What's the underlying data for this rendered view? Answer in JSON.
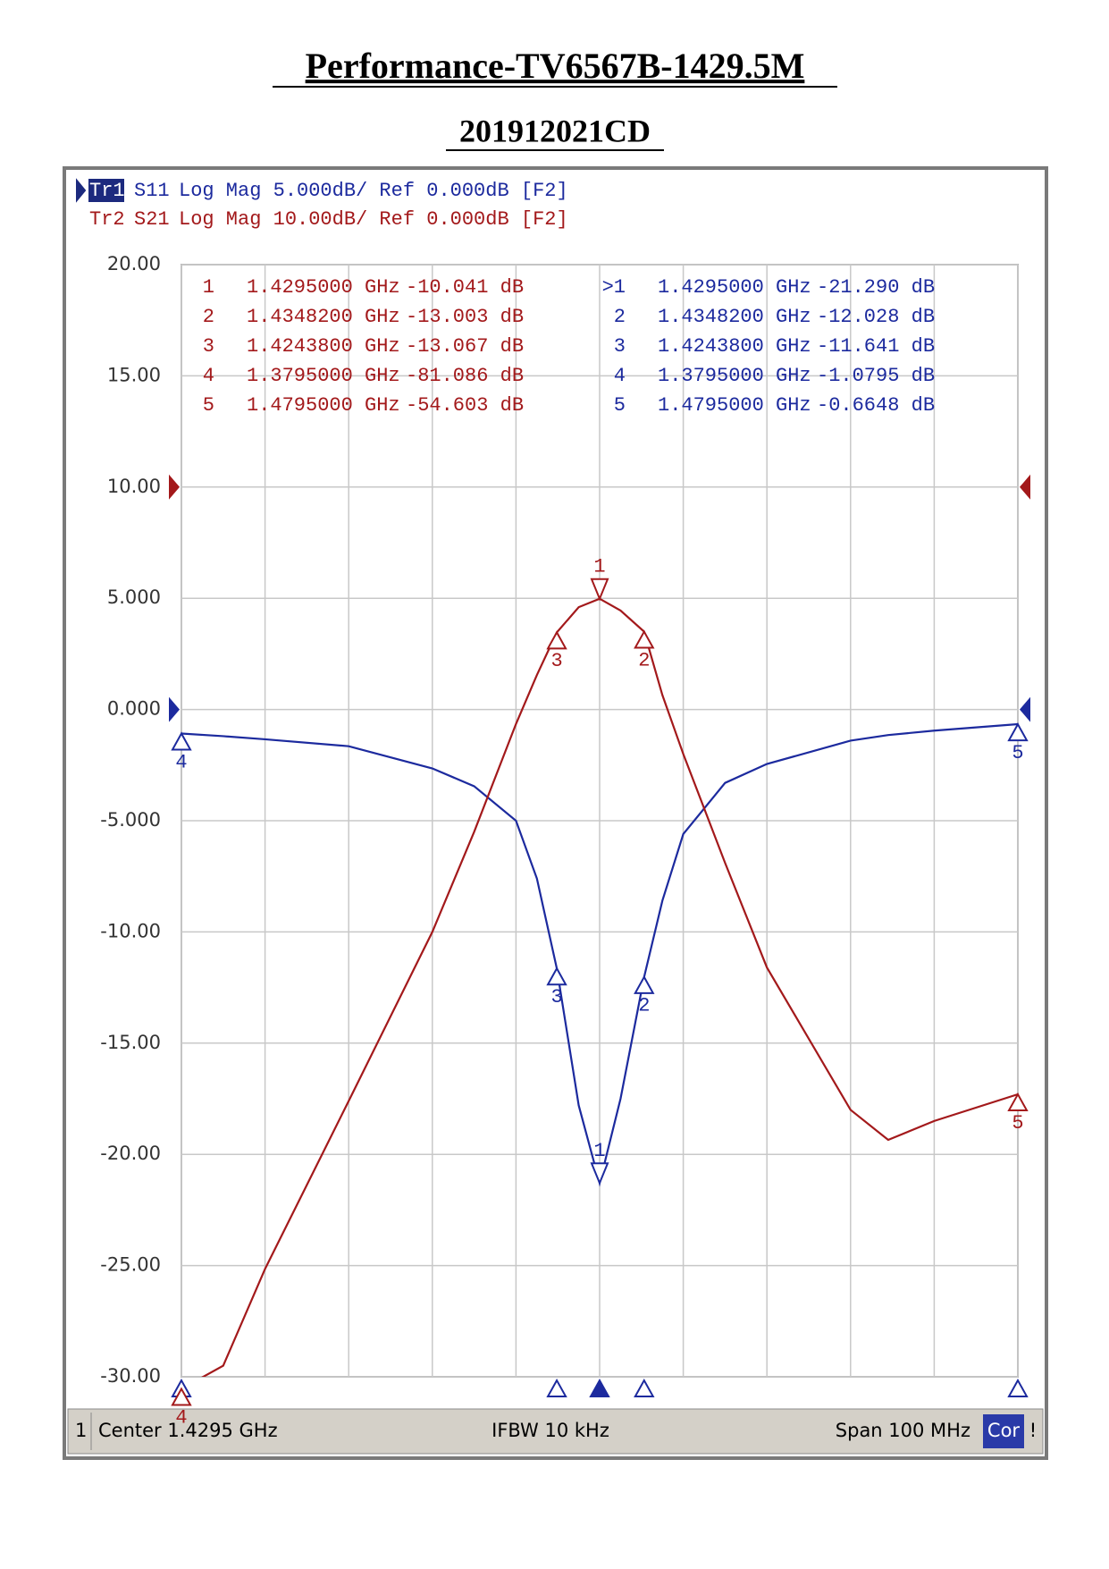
{
  "title": "Performance-TV6567B-1429.5M",
  "subtitle": "201912021CD",
  "chart_data": {
    "type": "line",
    "x": [
      1.3795,
      1.3845,
      1.3895,
      1.3995,
      1.4095,
      1.4145,
      1.4195,
      1.422,
      1.42438,
      1.427,
      1.4295,
      1.432,
      1.43482,
      1.437,
      1.4395,
      1.4445,
      1.4495,
      1.4595,
      1.464,
      1.4695,
      1.4795
    ],
    "xlim": [
      1.3795,
      1.4795
    ],
    "xticks": [
      1.3795,
      1.3895,
      1.3995,
      1.4095,
      1.4195,
      1.4295,
      1.4395,
      1.4495,
      1.4595,
      1.4695,
      1.4795
    ],
    "ylim": [
      -30,
      20
    ],
    "yticks": [
      {
        "value": 20,
        "label": "20.00"
      },
      {
        "value": 15,
        "label": "15.00"
      },
      {
        "value": 10,
        "label": "10.00"
      },
      {
        "value": 5,
        "label": "5.000"
      },
      {
        "value": 0,
        "label": "0.000"
      },
      {
        "value": -5,
        "label": "-5.000"
      },
      {
        "value": -10,
        "label": "-10.00"
      },
      {
        "value": -15,
        "label": "-15.00"
      },
      {
        "value": -20,
        "label": "-20.00"
      },
      {
        "value": -25,
        "label": "-25.00"
      },
      {
        "value": -30,
        "label": "-30.00"
      }
    ],
    "y2lim": [
      -80,
      20
    ],
    "grid": true,
    "series": [
      {
        "trace": "Tr1",
        "name": "S11",
        "format": "Log Mag 5.000dB/ Ref 0.000dB [F2]",
        "color": "#1c2a9e",
        "ref": 0,
        "values": [
          -1.08,
          -1.2,
          -1.34,
          -1.65,
          -2.65,
          -3.45,
          -5.0,
          -7.6,
          -11.64,
          -17.8,
          -21.29,
          -17.5,
          -12.03,
          -8.6,
          -5.6,
          -3.3,
          -2.45,
          -1.4,
          -1.15,
          -0.95,
          -0.66
        ],
        "markers": [
          {
            "name": "1",
            "readout_name": ">1",
            "x": 1.4295,
            "x_label": "1.4295000 GHz",
            "value": -21.29,
            "value_label": "-21.290 dB",
            "active": true
          },
          {
            "name": "2",
            "x": 1.43482,
            "x_label": "1.4348200 GHz",
            "value": -12.028,
            "value_label": "-12.028 dB"
          },
          {
            "name": "3",
            "x": 1.42438,
            "x_label": "1.4243800 GHz",
            "value": -11.641,
            "value_label": "-11.641 dB"
          },
          {
            "name": "4",
            "x": 1.3795,
            "x_label": "1.3795000 GHz",
            "value": -1.0795,
            "value_label": "-1.0795 dB"
          },
          {
            "name": "5",
            "x": 1.4795,
            "x_label": "1.4795000 GHz",
            "value": -0.6648,
            "value_label": "-0.6648 dB"
          }
        ]
      },
      {
        "trace": "Tr2",
        "name": "S21",
        "format": "Log Mag 10.00dB/ Ref 0.000dB [F2]",
        "color": "#a3191b",
        "ref": 0,
        "axis": "y2",
        "values": [
          -81.09,
          -79,
          -70.3,
          -55.2,
          -40,
          -31,
          -21.3,
          -16.9,
          -13.07,
          -10.8,
          -10.04,
          -11.1,
          -13.0,
          -18.7,
          -24,
          -33.8,
          -43.2,
          -56,
          -58.7,
          -57,
          -54.6
        ],
        "markers": [
          {
            "name": "1",
            "x": 1.4295,
            "x_label": "1.4295000 GHz",
            "value": -10.041,
            "value_label": "-10.041 dB"
          },
          {
            "name": "2",
            "x": 1.43482,
            "x_label": "1.4348200 GHz",
            "value": -13.003,
            "value_label": "-13.003 dB"
          },
          {
            "name": "3",
            "x": 1.42438,
            "x_label": "1.4243800 GHz",
            "value": -13.067,
            "value_label": "-13.067 dB"
          },
          {
            "name": "4",
            "x": 1.3795,
            "x_label": "1.3795000 GHz",
            "value": -81.086,
            "value_label": "-81.086 dB"
          },
          {
            "name": "5",
            "x": 1.4795,
            "x_label": "1.4795000 GHz",
            "value": -54.603,
            "value_label": "-54.603 dB"
          }
        ]
      }
    ],
    "status": {
      "channel": "1",
      "center": "Center 1.4295 GHz",
      "ifbw": "IFBW 10 kHz",
      "span": "Span 100 MHz",
      "correction": "Cor",
      "alert": "!"
    }
  }
}
